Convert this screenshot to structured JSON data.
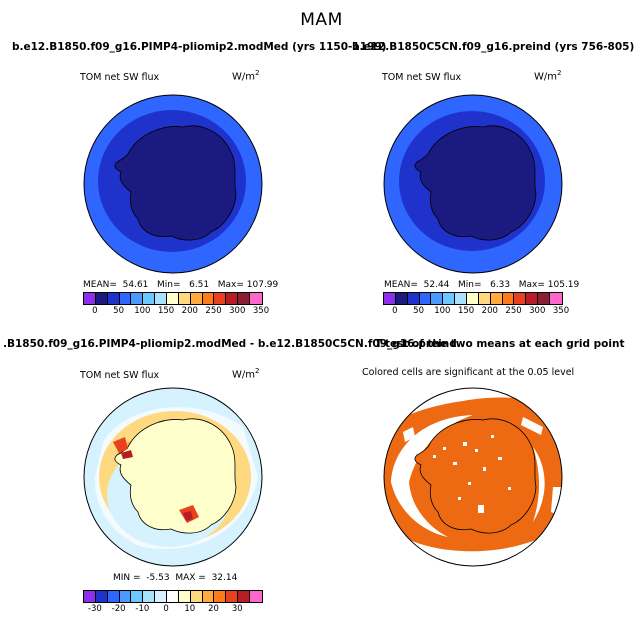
{
  "figure": {
    "title": "MAM"
  },
  "chart_data": [
    {
      "type": "heatmap",
      "projection": "south-polar-stereographic",
      "title": "b.e12.B1850.f09_g16.PIMP4-pliomip2.modMed (yrs 1150-1199)",
      "variable": "TOM net SW flux",
      "units_base": "W/m",
      "units_exp": "2",
      "stats": {
        "mean_label": "MEAN=",
        "mean": "54.61",
        "min_label": "Min=",
        "min": "6.51",
        "max_label": "Max=",
        "max": "107.99"
      },
      "colorbar": {
        "colors": [
          "#8c2eeb",
          "#1a1a80",
          "#1f33cc",
          "#2e66ff",
          "#4c99ff",
          "#6ec8ff",
          "#a8e2ff",
          "#ffffcc",
          "#ffd980",
          "#ffaa3f",
          "#ff7a1a",
          "#e8411e",
          "#b81c26",
          "#8a1f33",
          "#ff66cc"
        ],
        "tick_labels": [
          "0",
          "50",
          "100",
          "150",
          "200",
          "250",
          "300",
          "350"
        ]
      }
    },
    {
      "type": "heatmap",
      "projection": "south-polar-stereographic",
      "title": "b.e12.B1850C5CN.f09_g16.preind (yrs 756-805)",
      "variable": "TOM net SW flux",
      "units_base": "W/m",
      "units_exp": "2",
      "stats": {
        "mean_label": "MEAN=",
        "mean": "52.44",
        "min_label": "Min=",
        "min": "6.33",
        "max_label": "Max=",
        "max": "105.19"
      },
      "colorbar": {
        "colors": [
          "#8c2eeb",
          "#1a1a80",
          "#1f33cc",
          "#2e66ff",
          "#4c99ff",
          "#6ec8ff",
          "#a8e2ff",
          "#ffffcc",
          "#ffd980",
          "#ffaa3f",
          "#ff7a1a",
          "#e8411e",
          "#b81c26",
          "#8a1f33",
          "#ff66cc"
        ],
        "tick_labels": [
          "0",
          "50",
          "100",
          "150",
          "200",
          "250",
          "300",
          "350"
        ]
      }
    },
    {
      "type": "heatmap",
      "projection": "south-polar-stereographic",
      "title": ".B1850.f09_g16.PIMP4-pliomip2.modMed - b.e12.B1850C5CN.f09_g16.preind",
      "variable": "TOM net SW flux",
      "units_base": "W/m",
      "units_exp": "2",
      "stats": {
        "min_label": "MIN =",
        "min": "-5.53",
        "max_label": "MAX =",
        "max": "32.14"
      },
      "colorbar": {
        "colors": [
          "#8c2eeb",
          "#1f33cc",
          "#2e66ff",
          "#4c99ff",
          "#6ec8ff",
          "#a8e2ff",
          "#d6f2ff",
          "#ffffff",
          "#ffffcc",
          "#ffd980",
          "#ffaa3f",
          "#ff7a1a",
          "#e8411e",
          "#b81c26",
          "#ff66cc"
        ],
        "tick_labels": [
          "-30",
          "-20",
          "-10",
          "0",
          "10",
          "20",
          "30"
        ]
      }
    },
    {
      "type": "heatmap",
      "projection": "south-polar-stereographic",
      "title": "T-test of the two means at each grid point",
      "subtitle": "Colored cells are significant at the 0.05 level",
      "significant_color": "#ee6a12"
    }
  ]
}
